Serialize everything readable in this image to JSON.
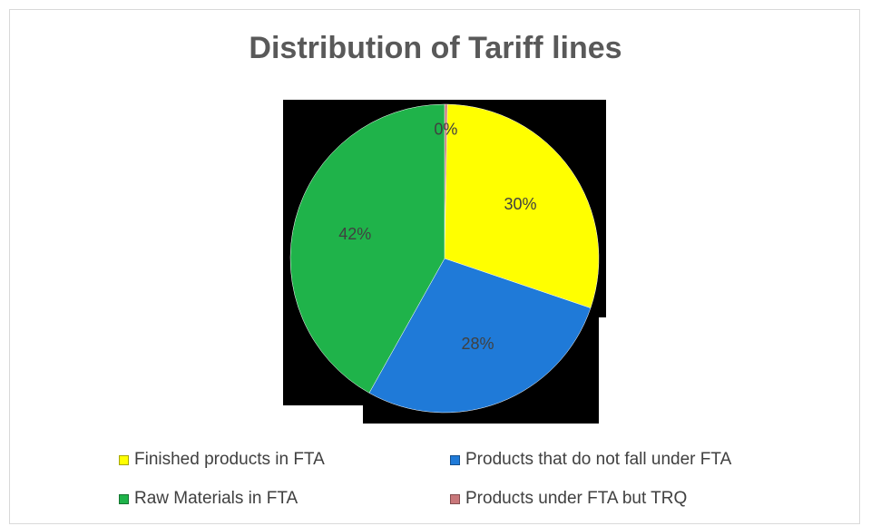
{
  "chart_data": {
    "type": "pie",
    "title": "Distribution of Tariff lines",
    "slices": [
      {
        "label": "Products under FTA but TRQ",
        "value": 0.3,
        "display": "0%",
        "color": "#c9777a"
      },
      {
        "label": "Finished products in FTA",
        "value": 30,
        "display": "30%",
        "color": "#ffff00"
      },
      {
        "label": "Products that do not fall under FTA",
        "value": 28,
        "display": "28%",
        "color": "#1f7ad8"
      },
      {
        "label": "Raw Materials in FTA",
        "value": 42,
        "display": "42%",
        "color": "#1fb34a"
      }
    ],
    "legend": {
      "placement": "bottom",
      "entries": [
        {
          "label": "Finished products in FTA",
          "color": "#ffff00"
        },
        {
          "label": "Products that do not fall under FTA",
          "color": "#1f7ad8"
        },
        {
          "label": "Raw Materials in FTA",
          "color": "#1fb34a"
        },
        {
          "label": "Products under FTA but TRQ",
          "color": "#c9777a"
        }
      ]
    }
  }
}
